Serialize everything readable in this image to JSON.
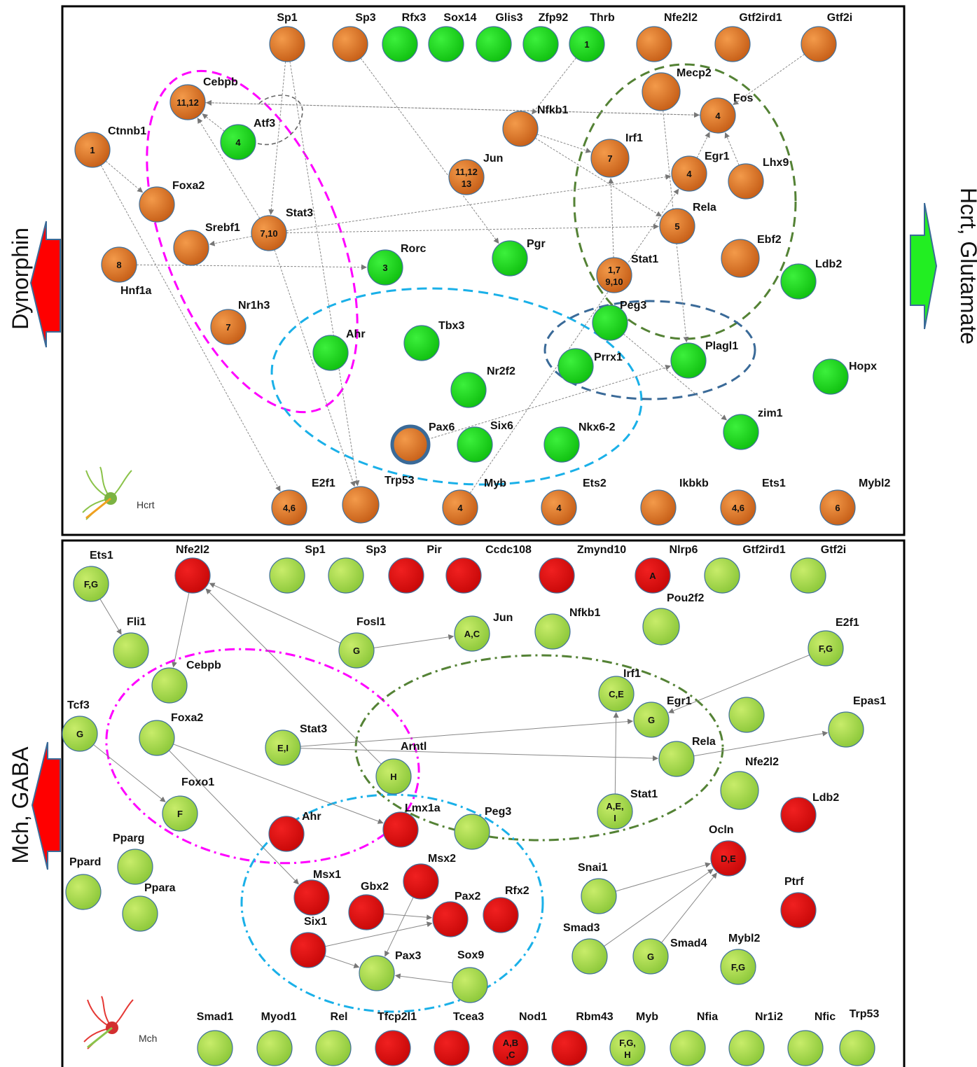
{
  "side_labels": {
    "left_top": "Dynorphin",
    "right_top": "Hcrt, Glutamate",
    "left_bottom": "Mch, GABA"
  },
  "colors": {
    "orange": "#e07a2c",
    "green_bright": "#2ed82e",
    "green_light": "#a8d84a",
    "red": "#e01414",
    "magenta": "#ff00ff",
    "cyan": "#1ab0e8",
    "olive": "#548235",
    "steel_blue": "#3a6a98",
    "arrow_red": "#ff0000",
    "arrow_green": "#22ee22"
  },
  "panels": {
    "top": {
      "neuron_label": "Hcrt",
      "nodes": [
        {
          "id": "t_sp1",
          "name": "Sp1",
          "text": "",
          "color": "orange"
        },
        {
          "id": "t_sp3",
          "name": "Sp3",
          "text": "",
          "color": "orange"
        },
        {
          "id": "t_rfx3",
          "name": "Rfx3",
          "text": "",
          "color": "green"
        },
        {
          "id": "t_sox14",
          "name": "Sox14",
          "text": "",
          "color": "green"
        },
        {
          "id": "t_glis3",
          "name": "Glis3",
          "text": "",
          "color": "green"
        },
        {
          "id": "t_zfp92",
          "name": "Zfp92",
          "text": "",
          "color": "green"
        },
        {
          "id": "t_thrb",
          "name": "Thrb",
          "text": "1",
          "color": "green"
        },
        {
          "id": "t_nfe2l2",
          "name": "Nfe2l2",
          "text": "",
          "color": "orange"
        },
        {
          "id": "t_gtf2ird1",
          "name": "Gtf2ird1",
          "text": "",
          "color": "orange"
        },
        {
          "id": "t_gtf2i",
          "name": "Gtf2i",
          "text": "",
          "color": "orange"
        },
        {
          "id": "t_cebpb",
          "name": "Cebpb",
          "text": "11,12",
          "color": "orange"
        },
        {
          "id": "t_atf3",
          "name": "Atf3",
          "text": "4",
          "color": "green"
        },
        {
          "id": "t_ctnnb1",
          "name": "Ctnnb1",
          "text": "1",
          "color": "orange"
        },
        {
          "id": "t_foxa2",
          "name": "Foxa2",
          "text": "",
          "color": "orange"
        },
        {
          "id": "t_srebf1",
          "name": "Srebf1",
          "text": "",
          "color": "orange"
        },
        {
          "id": "t_stat3",
          "name": "Stat3",
          "text": "7,10",
          "color": "orange"
        },
        {
          "id": "t_hnf1a",
          "name": "Hnf1a",
          "text": "8",
          "color": "orange"
        },
        {
          "id": "t_nr1h3",
          "name": "Nr1h3",
          "text": "7",
          "color": "orange"
        },
        {
          "id": "t_rorc",
          "name": "Rorc",
          "text": "3",
          "color": "green"
        },
        {
          "id": "t_jun",
          "name": "Jun",
          "text": "11,12\n13",
          "color": "orange"
        },
        {
          "id": "t_nfkb1",
          "name": "Nfkb1",
          "text": "",
          "color": "orange"
        },
        {
          "id": "t_mecp2",
          "name": "Mecp2",
          "text": "",
          "color": "orange"
        },
        {
          "id": "t_fos",
          "name": "Fos",
          "text": "4",
          "color": "orange"
        },
        {
          "id": "t_irf1",
          "name": "Irf1",
          "text": "7",
          "color": "orange"
        },
        {
          "id": "t_egr1",
          "name": "Egr1",
          "text": "4",
          "color": "orange"
        },
        {
          "id": "t_lhx9",
          "name": "Lhx9",
          "text": "",
          "color": "orange"
        },
        {
          "id": "t_rela",
          "name": "Rela",
          "text": "5",
          "color": "orange"
        },
        {
          "id": "t_ebf2",
          "name": "Ebf2",
          "text": "",
          "color": "orange"
        },
        {
          "id": "t_pgr",
          "name": "Pgr",
          "text": "",
          "color": "green"
        },
        {
          "id": "t_stat1",
          "name": "Stat1",
          "text": "1,7\n9,10",
          "color": "orange"
        },
        {
          "id": "t_ldb2",
          "name": "Ldb2",
          "text": "",
          "color": "green"
        },
        {
          "id": "t_peg3",
          "name": "Peg3",
          "text": "",
          "color": "green"
        },
        {
          "id": "t_ahr",
          "name": "Ahr",
          "text": "",
          "color": "green"
        },
        {
          "id": "t_tbx3",
          "name": "Tbx3",
          "text": "",
          "color": "green"
        },
        {
          "id": "t_prrx1",
          "name": "Prrx1",
          "text": "",
          "color": "green"
        },
        {
          "id": "t_plagl1",
          "name": "Plagl1",
          "text": "",
          "color": "green"
        },
        {
          "id": "t_hopx",
          "name": "Hopx",
          "text": "",
          "color": "green"
        },
        {
          "id": "t_nr2f2",
          "name": "Nr2f2",
          "text": "",
          "color": "green"
        },
        {
          "id": "t_pax6",
          "name": "Pax6",
          "text": "",
          "color": "orange"
        },
        {
          "id": "t_six6",
          "name": "Six6",
          "text": "",
          "color": "green"
        },
        {
          "id": "t_nkx62",
          "name": "Nkx6-2",
          "text": "",
          "color": "green"
        },
        {
          "id": "t_zim1",
          "name": "zim1",
          "text": "",
          "color": "green"
        },
        {
          "id": "t_e2f1",
          "name": "E2f1",
          "text": "4,6",
          "color": "orange"
        },
        {
          "id": "t_trp53",
          "name": "Trp53",
          "text": "",
          "color": "orange"
        },
        {
          "id": "t_myb",
          "name": "Myb",
          "text": "4",
          "color": "orange"
        },
        {
          "id": "t_ets2",
          "name": "Ets2",
          "text": "4",
          "color": "orange"
        },
        {
          "id": "t_ikbkb",
          "name": "Ikbkb",
          "text": "",
          "color": "orange"
        },
        {
          "id": "t_ets1",
          "name": "Ets1",
          "text": "4,6",
          "color": "orange"
        },
        {
          "id": "t_mybl2",
          "name": "Mybl2",
          "text": "6",
          "color": "orange"
        }
      ],
      "edges": [
        [
          "t_sp1",
          "t_trp53"
        ],
        [
          "t_sp1",
          "t_stat3"
        ],
        [
          "t_thrb",
          "t_nfkb1"
        ],
        [
          "t_gtf2i",
          "t_fos"
        ],
        [
          "t_atf3",
          "t_cebpb"
        ],
        [
          "t_fos",
          "t_cebpb"
        ],
        [
          "t_cebpb",
          "t_fos"
        ],
        [
          "t_stat3",
          "t_cebpb"
        ],
        [
          "t_stat3",
          "t_egr1"
        ],
        [
          "t_stat3",
          "t_srebf1"
        ],
        [
          "t_stat3",
          "t_rela"
        ],
        [
          "t_hnf1a",
          "t_rorc"
        ],
        [
          "t_ctnnb1",
          "t_foxa2"
        ],
        [
          "t_ctnnb1",
          "t_e2f1"
        ],
        [
          "t_nfkb1",
          "t_rela"
        ],
        [
          "t_nfkb1",
          "t_irf1"
        ],
        [
          "t_sp3",
          "t_pgr"
        ],
        [
          "t_stat1",
          "t_irf1"
        ],
        [
          "t_mecp2",
          "t_plagl1"
        ],
        [
          "t_egr1",
          "t_fos"
        ],
        [
          "t_lhx9",
          "t_fos"
        ],
        [
          "t_peg3",
          "t_zim1"
        ],
        [
          "t_pax6",
          "t_plagl1"
        ],
        [
          "t_myb",
          "t_egr1"
        ],
        [
          "t_stat3",
          "t_trp53"
        ]
      ]
    },
    "bottom": {
      "neuron_label": "Mch",
      "nodes": [
        {
          "id": "b_ets1",
          "name": "Ets1",
          "text": "F,G",
          "color": "light"
        },
        {
          "id": "b_nfe2l2",
          "name": "Nfe2l2",
          "text": "",
          "color": "red"
        },
        {
          "id": "b_sp1",
          "name": "Sp1",
          "text": "",
          "color": "light"
        },
        {
          "id": "b_sp3",
          "name": "Sp3",
          "text": "",
          "color": "light"
        },
        {
          "id": "b_pir",
          "name": "Pir",
          "text": "",
          "color": "red"
        },
        {
          "id": "b_ccdc108",
          "name": "Ccdc108",
          "text": "",
          "color": "red"
        },
        {
          "id": "b_zmynd10",
          "name": "Zmynd10",
          "text": "",
          "color": "red"
        },
        {
          "id": "b_nlrp6",
          "name": "Nlrp6",
          "text": "A",
          "color": "red"
        },
        {
          "id": "b_gtf2ird1",
          "name": "Gtf2ird1",
          "text": "",
          "color": "light"
        },
        {
          "id": "b_gtf2i",
          "name": "Gtf2i",
          "text": "",
          "color": "light"
        },
        {
          "id": "b_fli1",
          "name": "Fli1",
          "text": "",
          "color": "light"
        },
        {
          "id": "b_fosl1",
          "name": "Fosl1",
          "text": "G",
          "color": "light"
        },
        {
          "id": "b_jun",
          "name": "Jun",
          "text": "A,C",
          "color": "light"
        },
        {
          "id": "b_nfkb1",
          "name": "Nfkb1",
          "text": "",
          "color": "light"
        },
        {
          "id": "b_pou2f2",
          "name": "Pou2f2",
          "text": "",
          "color": "light"
        },
        {
          "id": "b_e2f1",
          "name": "E2f1",
          "text": "F,G",
          "color": "light"
        },
        {
          "id": "b_cebpb",
          "name": "Cebpb",
          "text": "",
          "color": "light"
        },
        {
          "id": "b_irf1",
          "name": "Irf1",
          "text": "C,E",
          "color": "light"
        },
        {
          "id": "b_egr1",
          "name": "Egr1",
          "text": "G",
          "color": "light"
        },
        {
          "id": "b_epas1",
          "name": "Epas1",
          "text": "",
          "color": "light"
        },
        {
          "id": "b_tcf3",
          "name": "Tcf3",
          "text": "G",
          "color": "light"
        },
        {
          "id": "b_foxa2",
          "name": "Foxa2",
          "text": "",
          "color": "light"
        },
        {
          "id": "b_stat3",
          "name": "Stat3",
          "text": "E,I",
          "color": "light"
        },
        {
          "id": "b_arntl",
          "name": "Arntl",
          "text": "H",
          "color": "light"
        },
        {
          "id": "b_rela",
          "name": "Rela",
          "text": "",
          "color": "light"
        },
        {
          "id": "b_extra",
          "name": "",
          "text": "",
          "color": "light"
        },
        {
          "id": "b_nfe2l2b",
          "name": "Nfe2l2",
          "text": "",
          "color": "light"
        },
        {
          "id": "b_foxo1",
          "name": "Foxo1",
          "text": "F",
          "color": "light"
        },
        {
          "id": "b_ahr",
          "name": "Ahr",
          "text": "",
          "color": "red"
        },
        {
          "id": "b_lmx1a",
          "name": "Lmx1a",
          "text": "",
          "color": "red"
        },
        {
          "id": "b_peg3",
          "name": "Peg3",
          "text": "",
          "color": "light"
        },
        {
          "id": "b_stat1",
          "name": "Stat1",
          "text": "A,E,\nI",
          "color": "light"
        },
        {
          "id": "b_ldb2",
          "name": "Ldb2",
          "text": "",
          "color": "red"
        },
        {
          "id": "b_pparg",
          "name": "Pparg",
          "text": "",
          "color": "light"
        },
        {
          "id": "b_ppard",
          "name": "Ppard",
          "text": "",
          "color": "light"
        },
        {
          "id": "b_ppara",
          "name": "Ppara",
          "text": "",
          "color": "light"
        },
        {
          "id": "b_ocln",
          "name": "Ocln",
          "text": "D,E",
          "color": "red"
        },
        {
          "id": "b_snai1",
          "name": "Snai1",
          "text": "",
          "color": "light"
        },
        {
          "id": "b_ptrf",
          "name": "Ptrf",
          "text": "",
          "color": "red"
        },
        {
          "id": "b_msx1",
          "name": "Msx1",
          "text": "",
          "color": "red"
        },
        {
          "id": "b_msx2",
          "name": "Msx2",
          "text": "",
          "color": "red"
        },
        {
          "id": "b_gbx2",
          "name": "Gbx2",
          "text": "",
          "color": "red"
        },
        {
          "id": "b_pax2",
          "name": "Pax2",
          "text": "",
          "color": "red"
        },
        {
          "id": "b_rfx2",
          "name": "Rfx2",
          "text": "",
          "color": "red"
        },
        {
          "id": "b_six1",
          "name": "Six1",
          "text": "",
          "color": "red"
        },
        {
          "id": "b_pax3",
          "name": "Pax3",
          "text": "",
          "color": "light"
        },
        {
          "id": "b_sox9",
          "name": "Sox9",
          "text": "",
          "color": "light"
        },
        {
          "id": "b_smad3",
          "name": "Smad3",
          "text": "",
          "color": "light"
        },
        {
          "id": "b_smad4",
          "name": "Smad4",
          "text": "G",
          "color": "light"
        },
        {
          "id": "b_mybl2",
          "name": "Mybl2",
          "text": "F,G",
          "color": "light"
        },
        {
          "id": "b_smad1",
          "name": "Smad1",
          "text": "",
          "color": "light"
        },
        {
          "id": "b_myod1",
          "name": "Myod1",
          "text": "",
          "color": "light"
        },
        {
          "id": "b_rel",
          "name": "Rel",
          "text": "",
          "color": "light"
        },
        {
          "id": "b_tfcp2l1",
          "name": "Tfcp2l1",
          "text": "",
          "color": "red"
        },
        {
          "id": "b_tcea3",
          "name": "Tcea3",
          "text": "",
          "color": "red"
        },
        {
          "id": "b_nod1",
          "name": "Nod1",
          "text": "A,B\n,C",
          "color": "red"
        },
        {
          "id": "b_rbm43",
          "name": "Rbm43",
          "text": "",
          "color": "red"
        },
        {
          "id": "b_myb",
          "name": "Myb",
          "text": "F,G,\nH",
          "color": "light"
        },
        {
          "id": "b_nfia",
          "name": "Nfia",
          "text": "",
          "color": "light"
        },
        {
          "id": "b_nr1i2",
          "name": "Nr1i2",
          "text": "",
          "color": "light"
        },
        {
          "id": "b_nfic",
          "name": "Nfic",
          "text": "",
          "color": "light"
        },
        {
          "id": "b_trp53",
          "name": "Trp53",
          "text": "",
          "color": "light"
        }
      ],
      "edges": [
        [
          "b_ets1",
          "b_fli1"
        ],
        [
          "b_nfe2l2",
          "b_cebpb"
        ],
        [
          "b_fosl1",
          "b_jun"
        ],
        [
          "b_e2f1",
          "b_egr1"
        ],
        [
          "b_tcf3",
          "b_foxo1"
        ],
        [
          "b_foxa2",
          "b_lmx1a"
        ],
        [
          "b_foxa2",
          "b_msx1"
        ],
        [
          "b_stat3",
          "b_egr1"
        ],
        [
          "b_stat3",
          "b_rela"
        ],
        [
          "b_rela",
          "b_epas1"
        ],
        [
          "b_stat1",
          "b_irf1"
        ],
        [
          "b_arntl",
          "b_nfe2l2"
        ],
        [
          "b_fosl1",
          "b_nfe2l2"
        ],
        [
          "b_snai1",
          "b_ocln"
        ],
        [
          "b_smad3",
          "b_ocln"
        ],
        [
          "b_smad4",
          "b_ocln"
        ],
        [
          "b_six1",
          "b_pax2"
        ],
        [
          "b_gbx2",
          "b_pax2"
        ],
        [
          "b_msx2",
          "b_pax3"
        ],
        [
          "b_six1",
          "b_pax3"
        ],
        [
          "b_sox9",
          "b_pax3"
        ]
      ]
    }
  }
}
